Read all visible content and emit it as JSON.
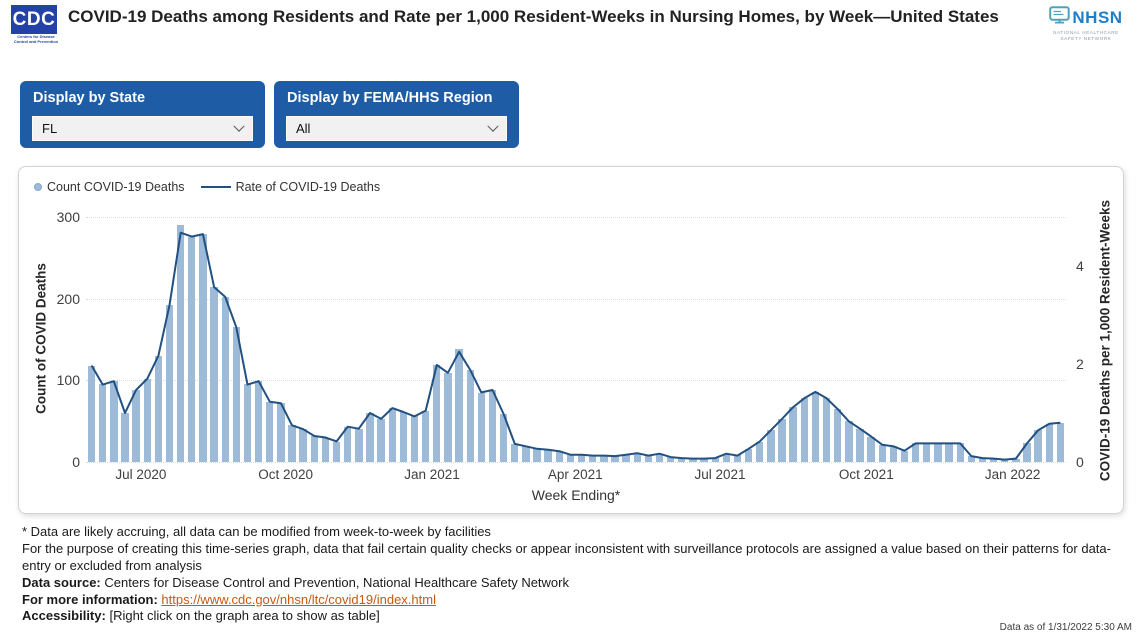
{
  "header": {
    "title": "COVID-19 Deaths among Residents and Rate per 1,000 Resident-Weeks in Nursing Homes, by Week—United States",
    "cdc_logo_text": "CDC",
    "cdc_logo_sub": "Centers for Disease Control and Prevention",
    "nhsn_logo_text": "NHSN",
    "nhsn_logo_sub": "NATIONAL HEALTHCARE SAFETY NETWORK"
  },
  "filters": {
    "state": {
      "label": "Display by State",
      "value": "FL"
    },
    "region": {
      "label": "Display by FEMA/HHS Region",
      "value": "All"
    }
  },
  "colors": {
    "bar": "#9dbad8",
    "line": "#215081",
    "panel_blue": "#1e5ca6",
    "cdc_blue": "#2442a5",
    "nhsn_blue": "#1e7ec8",
    "link": "#c55a11",
    "gridline": "#dbdbdb"
  },
  "chart_data": {
    "type": "bar",
    "title": "COVID-19 Deaths among Residents and Rate per 1,000 Resident-Weeks in Nursing Homes, by Week",
    "legend": [
      {
        "label": "Count COVID-19 Deaths",
        "marker": "dot",
        "color": "#9dbad8"
      },
      {
        "label": "Rate of COVID-19 Deaths",
        "marker": "line",
        "color": "#215081"
      }
    ],
    "x": [
      "5/31/2020",
      "6/7/2020",
      "6/14/2020",
      "6/21/2020",
      "6/28/2020",
      "7/5/2020",
      "7/12/2020",
      "7/19/2020",
      "7/26/2020",
      "8/2/2020",
      "8/9/2020",
      "8/16/2020",
      "8/23/2020",
      "8/30/2020",
      "9/6/2020",
      "9/13/2020",
      "9/20/2020",
      "9/27/2020",
      "10/4/2020",
      "10/11/2020",
      "10/18/2020",
      "10/25/2020",
      "11/1/2020",
      "11/8/2020",
      "11/15/2020",
      "11/22/2020",
      "11/29/2020",
      "12/6/2020",
      "12/13/2020",
      "12/20/2020",
      "12/27/2020",
      "1/3/2021",
      "1/10/2021",
      "1/17/2021",
      "1/24/2021",
      "1/31/2021",
      "2/7/2021",
      "2/14/2021",
      "2/21/2021",
      "2/28/2021",
      "3/7/2021",
      "3/14/2021",
      "3/21/2021",
      "3/28/2021",
      "4/4/2021",
      "4/11/2021",
      "4/18/2021",
      "4/25/2021",
      "5/2/2021",
      "5/9/2021",
      "5/16/2021",
      "5/23/2021",
      "5/30/2021",
      "6/6/2021",
      "6/13/2021",
      "6/20/2021",
      "6/27/2021",
      "7/4/2021",
      "7/11/2021",
      "7/18/2021",
      "7/25/2021",
      "8/1/2021",
      "8/8/2021",
      "8/15/2021",
      "8/22/2021",
      "8/29/2021",
      "9/5/2021",
      "9/12/2021",
      "9/19/2021",
      "9/26/2021",
      "10/3/2021",
      "10/10/2021",
      "10/17/2021",
      "10/24/2021",
      "10/31/2021",
      "11/7/2021",
      "11/14/2021",
      "11/21/2021",
      "11/28/2021",
      "12/5/2021",
      "12/12/2021",
      "12/19/2021",
      "12/26/2021",
      "1/2/2022",
      "1/9/2022",
      "1/16/2022",
      "1/23/2022",
      "1/30/2022"
    ],
    "series": [
      {
        "name": "Count COVID-19 Deaths",
        "axis": "left",
        "values": [
          118,
          95,
          99,
          60,
          88,
          102,
          130,
          192,
          290,
          276,
          279,
          214,
          202,
          165,
          95,
          99,
          74,
          72,
          45,
          40,
          32,
          30,
          25,
          43,
          41,
          60,
          53,
          66,
          61,
          56,
          63,
          119,
          109,
          138,
          113,
          85,
          88,
          59,
          22,
          19,
          16,
          15,
          13,
          9,
          9,
          8,
          8,
          7,
          9,
          11,
          8,
          10,
          6,
          5,
          4,
          4,
          5,
          10,
          8,
          16,
          25,
          39,
          53,
          67,
          78,
          86,
          78,
          65,
          50,
          41,
          31,
          21,
          19,
          14,
          23,
          23,
          23,
          23,
          23,
          7,
          5,
          4,
          3,
          4,
          23,
          39,
          47,
          48
        ]
      },
      {
        "name": "Rate of COVID-19 Deaths",
        "axis": "right",
        "values": [
          1.97,
          1.58,
          1.65,
          1.0,
          1.47,
          1.7,
          2.17,
          3.2,
          4.68,
          4.6,
          4.65,
          3.57,
          3.37,
          2.75,
          1.58,
          1.65,
          1.23,
          1.2,
          0.75,
          0.67,
          0.53,
          0.5,
          0.42,
          0.72,
          0.68,
          1.0,
          0.88,
          1.1,
          1.02,
          0.93,
          1.05,
          1.98,
          1.82,
          2.25,
          1.88,
          1.42,
          1.47,
          0.98,
          0.37,
          0.32,
          0.27,
          0.25,
          0.22,
          0.15,
          0.15,
          0.13,
          0.13,
          0.12,
          0.15,
          0.18,
          0.13,
          0.17,
          0.1,
          0.08,
          0.07,
          0.07,
          0.08,
          0.17,
          0.13,
          0.27,
          0.42,
          0.65,
          0.88,
          1.12,
          1.3,
          1.43,
          1.3,
          1.08,
          0.83,
          0.68,
          0.52,
          0.35,
          0.32,
          0.23,
          0.38,
          0.38,
          0.38,
          0.38,
          0.38,
          0.12,
          0.08,
          0.07,
          0.05,
          0.07,
          0.38,
          0.65,
          0.78,
          0.8
        ]
      }
    ],
    "left_axis": {
      "title": "Count of COVID Deaths",
      "ticks": [
        0,
        100,
        200,
        300
      ],
      "min": 0,
      "max": 300
    },
    "right_axis": {
      "title": "COVID-19 Deaths per 1,000 Resident-Weeks",
      "ticks": [
        0,
        2,
        4
      ],
      "min": 0,
      "max": 5
    },
    "x_axis": {
      "title": "Week Ending*",
      "tick_labels": [
        "Jul 2020",
        "Oct 2020",
        "Jan 2021",
        "Apr 2021",
        "Jul 2021",
        "Oct 2021",
        "Jan 2022"
      ]
    },
    "grid": "horizontal-dotted",
    "legend_position": "top-left"
  },
  "footnotes": {
    "asterisk": "* Data are likely accruing, all data can be modified from week-to-week by facilities",
    "method": "For the purpose of creating this time-series graph, data that fail certain quality checks or appear inconsistent with surveillance protocols are assigned a value based on their patterns for data-entry or excluded from analysis",
    "data_source_label": "Data source:",
    "data_source": "Centers for Disease Control and Prevention, National Healthcare Safety Network",
    "more_info_label": "For more information:",
    "more_info_url": "https://www.cdc.gov/nhsn/ltc/covid19/index.html",
    "accessibility_label": "Accessibility:",
    "accessibility": "[Right click on the graph area to show as table]",
    "data_as_of": "Data as of 1/31/2022 5:30 AM"
  }
}
